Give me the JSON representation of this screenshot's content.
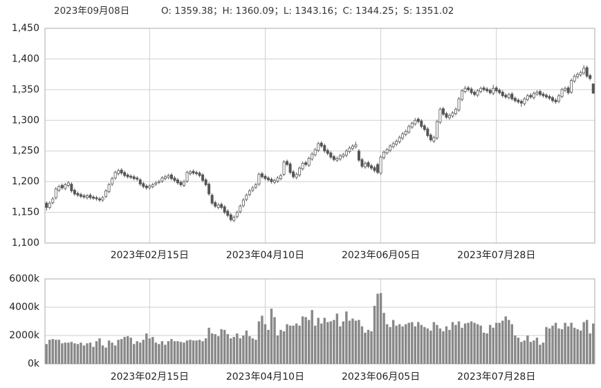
{
  "header": {
    "date": "2023年09月08日",
    "summary": "O: 1359.38；H: 1360.09；L: 1343.16；C: 1344.25；S: 1351.02"
  },
  "chart_data": [
    {
      "type": "candlestick",
      "color": "#555555",
      "grid": true,
      "xlim": [
        -0.5,
        175.5
      ],
      "xticks": [
        {
          "value": 33,
          "label": "2023年02月15日"
        },
        {
          "value": 70,
          "label": "2023年04月10日"
        },
        {
          "value": 107,
          "label": "2023年06月05日"
        },
        {
          "value": 144,
          "label": "2023年07月28日"
        }
      ],
      "ylim": [
        1100,
        1450
      ],
      "yticks": [
        {
          "value": 1100,
          "label": "1,100"
        },
        {
          "value": 1150,
          "label": "1,150"
        },
        {
          "value": 1200,
          "label": "1,200"
        },
        {
          "value": 1250,
          "label": "1,250"
        },
        {
          "value": 1300,
          "label": "1,300"
        },
        {
          "value": 1350,
          "label": "1,350"
        },
        {
          "value": 1400,
          "label": "1,400"
        },
        {
          "value": 1450,
          "label": "1,450"
        }
      ],
      "open": [
        1165,
        1158,
        1166,
        1174,
        1186,
        1194,
        1189,
        1194,
        1196,
        1186,
        1181,
        1179,
        1177,
        1174,
        1178,
        1175,
        1174,
        1172,
        1170,
        1176,
        1184,
        1196,
        1206,
        1213,
        1219,
        1215,
        1211,
        1209,
        1208,
        1206,
        1203,
        1197,
        1193,
        1190,
        1192,
        1196,
        1199,
        1201,
        1205,
        1207,
        1211,
        1206,
        1203,
        1199,
        1194,
        1201,
        1213,
        1217,
        1215,
        1214,
        1211,
        1203,
        1196,
        1178,
        1166,
        1158,
        1163,
        1159,
        1152,
        1146,
        1137,
        1143,
        1151,
        1161,
        1171,
        1179,
        1186,
        1191,
        1196,
        1213,
        1209,
        1206,
        1204,
        1199,
        1201,
        1205,
        1212,
        1233,
        1229,
        1216,
        1207,
        1211,
        1221,
        1231,
        1227,
        1237,
        1244,
        1251,
        1263,
        1259,
        1251,
        1247,
        1241,
        1235,
        1237,
        1241,
        1243,
        1249,
        1254,
        1257,
        1250,
        1236,
        1224,
        1231,
        1226,
        1223,
        1228,
        1214,
        1239,
        1247,
        1251,
        1257,
        1261,
        1265,
        1271,
        1277,
        1281,
        1289,
        1294,
        1302,
        1299,
        1291,
        1286,
        1276,
        1266,
        1271,
        1297,
        1319,
        1311,
        1304,
        1307,
        1311,
        1317,
        1334,
        1347,
        1353,
        1351,
        1346,
        1341,
        1347,
        1353,
        1351,
        1349,
        1344,
        1353,
        1349,
        1346,
        1341,
        1337,
        1343,
        1336,
        1333,
        1331,
        1327,
        1334,
        1341,
        1337,
        1343,
        1347,
        1343,
        1341,
        1339,
        1337,
        1333,
        1331,
        1339,
        1349,
        1353,
        1346,
        1364,
        1371,
        1374,
        1377,
        1386,
        1373,
        1359.38
      ],
      "high": [
        1168,
        1168,
        1175,
        1191,
        1195,
        1197,
        1198,
        1201,
        1199,
        1189,
        1184,
        1182,
        1180,
        1180,
        1181,
        1178,
        1177,
        1175,
        1177,
        1188,
        1198,
        1208,
        1218,
        1221,
        1222,
        1218,
        1214,
        1212,
        1211,
        1209,
        1206,
        1200,
        1196,
        1196,
        1198,
        1201,
        1203,
        1209,
        1211,
        1213,
        1214,
        1209,
        1206,
        1202,
        1203,
        1218,
        1219,
        1220,
        1218,
        1217,
        1214,
        1206,
        1199,
        1181,
        1169,
        1165,
        1166,
        1162,
        1155,
        1149,
        1145,
        1153,
        1163,
        1173,
        1181,
        1188,
        1193,
        1198,
        1215,
        1216,
        1212,
        1209,
        1207,
        1205,
        1209,
        1213,
        1235,
        1236,
        1232,
        1219,
        1215,
        1225,
        1233,
        1234,
        1241,
        1248,
        1255,
        1265,
        1266,
        1262,
        1254,
        1250,
        1244,
        1241,
        1245,
        1247,
        1253,
        1258,
        1261,
        1265,
        1253,
        1239,
        1233,
        1234,
        1229,
        1226,
        1231,
        1243,
        1251,
        1255,
        1261,
        1265,
        1269,
        1275,
        1281,
        1285,
        1293,
        1298,
        1304,
        1305,
        1302,
        1294,
        1289,
        1279,
        1275,
        1301,
        1321,
        1322,
        1314,
        1311,
        1315,
        1321,
        1338,
        1351,
        1356,
        1356,
        1354,
        1349,
        1351,
        1355,
        1356,
        1354,
        1352,
        1358,
        1356,
        1352,
        1349,
        1344,
        1345,
        1346,
        1339,
        1336,
        1334,
        1338,
        1343,
        1344,
        1347,
        1349,
        1350,
        1346,
        1344,
        1342,
        1340,
        1336,
        1343,
        1353,
        1355,
        1356,
        1368,
        1375,
        1378,
        1381,
        1390,
        1389,
        1376,
        1360.09
      ],
      "low": [
        1153,
        1155,
        1163,
        1171,
        1183,
        1187,
        1186,
        1191,
        1182,
        1177,
        1175,
        1173,
        1172,
        1171,
        1171,
        1170,
        1169,
        1167,
        1167,
        1173,
        1181,
        1193,
        1203,
        1210,
        1211,
        1207,
        1205,
        1204,
        1202,
        1201,
        1193,
        1189,
        1187,
        1187,
        1189,
        1193,
        1196,
        1198,
        1202,
        1204,
        1202,
        1199,
        1195,
        1192,
        1191,
        1198,
        1210,
        1211,
        1210,
        1207,
        1199,
        1192,
        1177,
        1162,
        1157,
        1155,
        1155,
        1147,
        1142,
        1135,
        1134,
        1140,
        1148,
        1158,
        1168,
        1176,
        1183,
        1188,
        1193,
        1205,
        1202,
        1200,
        1197,
        1196,
        1198,
        1202,
        1209,
        1225,
        1212,
        1205,
        1204,
        1208,
        1218,
        1225,
        1224,
        1234,
        1241,
        1248,
        1255,
        1247,
        1243,
        1237,
        1233,
        1232,
        1234,
        1238,
        1240,
        1246,
        1251,
        1254,
        1232,
        1222,
        1221,
        1222,
        1219,
        1215,
        1212,
        1211,
        1236,
        1244,
        1248,
        1254,
        1258,
        1262,
        1268,
        1274,
        1278,
        1286,
        1291,
        1295,
        1287,
        1282,
        1272,
        1265,
        1263,
        1268,
        1294,
        1307,
        1302,
        1301,
        1304,
        1308,
        1314,
        1331,
        1344,
        1347,
        1342,
        1339,
        1338,
        1344,
        1347,
        1345,
        1342,
        1341,
        1345,
        1342,
        1337,
        1335,
        1334,
        1332,
        1329,
        1327,
        1322,
        1324,
        1331,
        1335,
        1334,
        1340,
        1339,
        1337,
        1335,
        1333,
        1329,
        1327,
        1328,
        1336,
        1346,
        1342,
        1343,
        1361,
        1368,
        1371,
        1374,
        1369,
        1365,
        1343.16
      ],
      "close": [
        1158,
        1165,
        1172,
        1188,
        1192,
        1190,
        1195,
        1198,
        1185,
        1180,
        1178,
        1176,
        1175,
        1177,
        1174,
        1173,
        1172,
        1170,
        1174,
        1185,
        1195,
        1205,
        1215,
        1218,
        1214,
        1210,
        1208,
        1207,
        1205,
        1204,
        1196,
        1192,
        1190,
        1193,
        1195,
        1198,
        1200,
        1206,
        1208,
        1210,
        1205,
        1202,
        1198,
        1195,
        1200,
        1215,
        1216,
        1214,
        1213,
        1210,
        1202,
        1195,
        1180,
        1165,
        1160,
        1162,
        1158,
        1150,
        1145,
        1138,
        1142,
        1150,
        1160,
        1170,
        1178,
        1185,
        1190,
        1195,
        1212,
        1208,
        1205,
        1203,
        1200,
        1202,
        1206,
        1210,
        1232,
        1228,
        1215,
        1208,
        1212,
        1222,
        1230,
        1228,
        1238,
        1245,
        1252,
        1262,
        1258,
        1250,
        1246,
        1240,
        1236,
        1238,
        1242,
        1244,
        1250,
        1255,
        1258,
        1260,
        1235,
        1225,
        1230,
        1225,
        1222,
        1218,
        1215,
        1240,
        1248,
        1252,
        1258,
        1262,
        1266,
        1272,
        1278,
        1282,
        1290,
        1295,
        1300,
        1298,
        1290,
        1285,
        1275,
        1268,
        1272,
        1298,
        1318,
        1310,
        1305,
        1308,
        1312,
        1318,
        1335,
        1348,
        1352,
        1350,
        1345,
        1342,
        1348,
        1352,
        1350,
        1348,
        1345,
        1352,
        1348,
        1345,
        1340,
        1338,
        1342,
        1335,
        1332,
        1330,
        1328,
        1335,
        1340,
        1338,
        1344,
        1346,
        1342,
        1340,
        1338,
        1336,
        1332,
        1330,
        1340,
        1350,
        1352,
        1345,
        1365,
        1372,
        1375,
        1378,
        1385,
        1372,
        1368,
        1344.25
      ]
    },
    {
      "type": "bar",
      "color": "#888888",
      "grid": true,
      "xlim": [
        -0.5,
        175.5
      ],
      "xticks": [
        {
          "value": 33,
          "label": "2023年02月15日"
        },
        {
          "value": 70,
          "label": "2023年04月10日"
        },
        {
          "value": 107,
          "label": "2023年06月05日"
        },
        {
          "value": 144,
          "label": "2023年07月28日"
        }
      ],
      "ylim": [
        0,
        6000
      ],
      "yticks": [
        {
          "value": 0,
          "label": "0k"
        },
        {
          "value": 2000,
          "label": "2000k"
        },
        {
          "value": 4000,
          "label": "4000k"
        },
        {
          "value": 6000,
          "label": "6000k"
        }
      ],
      "values": [
        1400,
        1700,
        1750,
        1700,
        1700,
        1450,
        1500,
        1500,
        1550,
        1450,
        1400,
        1500,
        1300,
        1450,
        1500,
        1200,
        1600,
        1800,
        1300,
        1150,
        1650,
        1500,
        1300,
        1700,
        1750,
        1900,
        1950,
        1850,
        1400,
        1600,
        1500,
        1700,
        2150,
        1800,
        1900,
        1500,
        1400,
        1600,
        1350,
        1600,
        1750,
        1600,
        1600,
        1550,
        1500,
        1650,
        1700,
        1650,
        1650,
        1700,
        1600,
        1800,
        2550,
        2150,
        2100,
        1950,
        2450,
        2400,
        2100,
        1800,
        1900,
        2150,
        1800,
        2000,
        2350,
        1950,
        1800,
        1700,
        3000,
        3400,
        2800,
        2400,
        3900,
        3300,
        2000,
        2400,
        2300,
        2800,
        2700,
        2700,
        2850,
        2700,
        3350,
        3300,
        3100,
        3800,
        2700,
        3250,
        2850,
        3250,
        2950,
        3000,
        3100,
        3550,
        2650,
        3000,
        3700,
        3050,
        3200,
        3050,
        3100,
        2650,
        2200,
        2400,
        2300,
        4100,
        4950,
        5000,
        3600,
        2800,
        2600,
        3100,
        2700,
        2800,
        2650,
        2800,
        2900,
        2950,
        2650,
        2950,
        2750,
        2600,
        2500,
        2350,
        2950,
        2750,
        2500,
        2300,
        2650,
        2400,
        2950,
        2750,
        3000,
        2550,
        2850,
        2900,
        3000,
        2900,
        2800,
        2700,
        2200,
        2150,
        2750,
        2550,
        2900,
        2900,
        3050,
        3350,
        3100,
        2800,
        2000,
        1850,
        1550,
        1650,
        2000,
        1550,
        1650,
        1850,
        1350,
        1500,
        2600,
        2500,
        2700,
        2900,
        2500,
        2450,
        2900,
        2650,
        2900,
        2550,
        2450,
        2350,
        2950,
        3100,
        2150,
        2850
      ]
    }
  ]
}
